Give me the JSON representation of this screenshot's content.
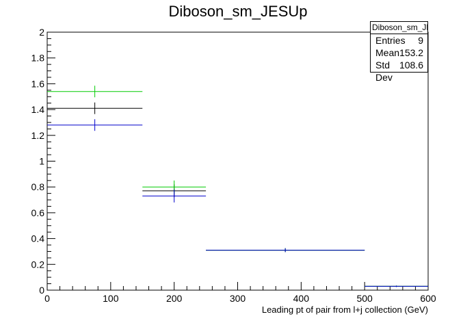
{
  "title": "Diboson_sm_JESUp",
  "stats": {
    "name": "Diboson_sm_JESUp",
    "rows": [
      {
        "label": "Entries",
        "value": "9"
      },
      {
        "label": "Mean",
        "value": "153.2"
      },
      {
        "label": "Std Dev",
        "value": "108.6"
      }
    ]
  },
  "chart_data": {
    "type": "histogram",
    "title": "Diboson_sm_JESUp",
    "xlabel": "Leading pt of pair from l+j collection (GeV)",
    "ylabel": "",
    "xlim": [
      0,
      600
    ],
    "ylim": [
      0,
      2
    ],
    "x_ticks": [
      "0",
      "100",
      "200",
      "300",
      "400",
      "500",
      "600"
    ],
    "y_ticks": [
      "0",
      "0.2",
      "0.4",
      "0.6",
      "0.8",
      "1",
      "1.2",
      "1.4",
      "1.6",
      "1.8",
      "2"
    ],
    "bins": [
      [
        0,
        150
      ],
      [
        150,
        250
      ],
      [
        250,
        500
      ],
      [
        500,
        600
      ]
    ],
    "series": [
      {
        "color": "#000000",
        "values": [
          1.41,
          0.77,
          0.31,
          0.03
        ],
        "errors": [
          0.045,
          0.05,
          0.015,
          0.005
        ]
      },
      {
        "color": "#00cc00",
        "values": [
          1.54,
          0.8,
          0.31,
          0.03
        ],
        "errors": [
          0.045,
          0.05,
          0.015,
          0.005
        ]
      },
      {
        "color": "#0000cc",
        "values": [
          1.28,
          0.73,
          0.31,
          0.03
        ],
        "errors": [
          0.045,
          0.05,
          0.015,
          0.005
        ]
      }
    ]
  }
}
